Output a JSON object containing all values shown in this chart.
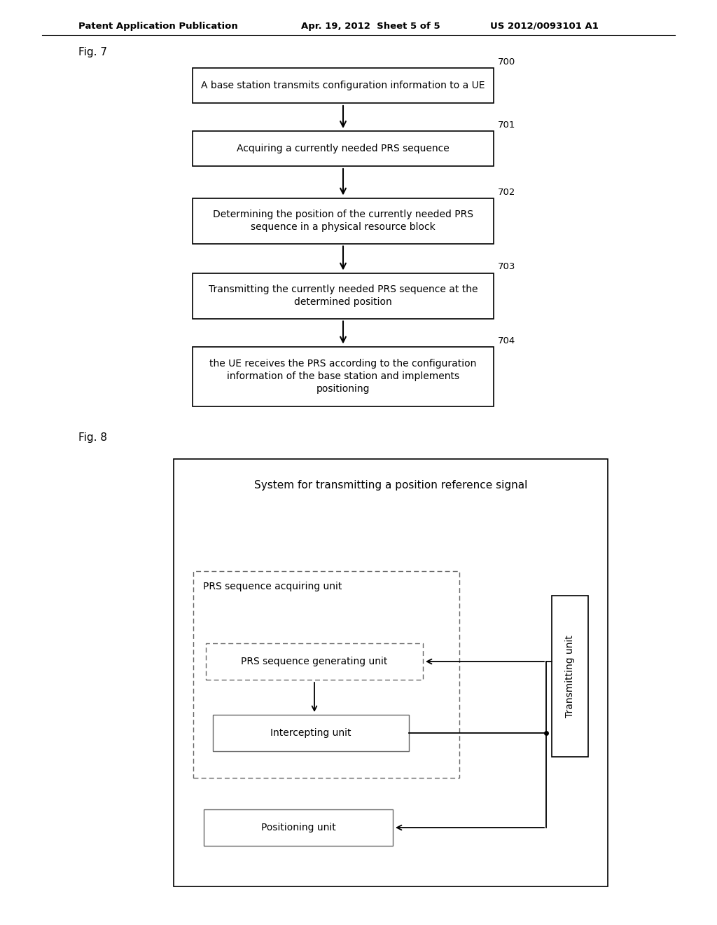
{
  "bg_color": "#ffffff",
  "header_left": "Patent Application Publication",
  "header_mid": "Apr. 19, 2012  Sheet 5 of 5",
  "header_right": "US 2012/0093101 A1",
  "fig7_label": "Fig. 7",
  "fig8_label": "Fig. 8",
  "fig7_boxes": [
    {
      "label": "700",
      "text": "A base station transmits configuration information to a UE",
      "lines": 1
    },
    {
      "label": "701",
      "text": "Acquiring a currently needed PRS sequence",
      "lines": 1
    },
    {
      "label": "702",
      "text": "Determining the position of the currently needed PRS\nsequence in a physical resource block",
      "lines": 2
    },
    {
      "label": "703",
      "text": "Transmitting the currently needed PRS sequence at the\ndetermined position",
      "lines": 2
    },
    {
      "label": "704",
      "text": "the UE receives the PRS according to the configuration\ninformation of the base station and implements\npositioning",
      "lines": 3
    }
  ],
  "fig8_system_title": "System for transmitting a position reference signal",
  "fig8_acquiring_label": "PRS sequence acquiring unit",
  "fig8_generating_label": "PRS sequence generating unit",
  "fig8_intercepting_label": "Intercepting unit",
  "fig8_transmitting_label": "Transmitting unit",
  "fig8_positioning_label": "Positioning unit"
}
